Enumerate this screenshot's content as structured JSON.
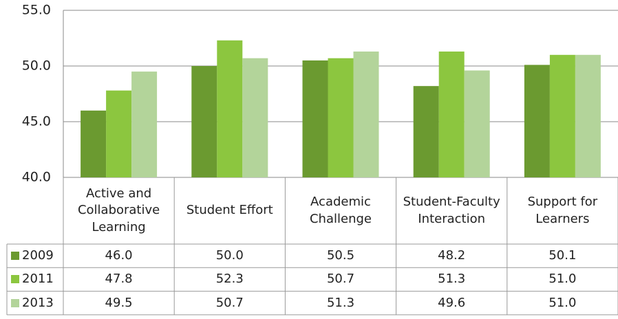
{
  "chart_data": {
    "type": "bar",
    "categories": [
      "Active and Collaborative Learning",
      "Student Effort",
      "Academic Challenge",
      "Student-Faculty Interaction",
      "Support for Learners"
    ],
    "series": [
      {
        "name": "2009",
        "color": "#6b9a30",
        "values": [
          46.0,
          50.0,
          50.5,
          48.2,
          50.1
        ],
        "value_labels": [
          "46.0",
          "50.0",
          "50.5",
          "48.2",
          "50.1"
        ]
      },
      {
        "name": "2011",
        "color": "#8cc63f",
        "values": [
          47.8,
          52.3,
          50.7,
          51.3,
          51.0
        ],
        "value_labels": [
          "47.8",
          "52.3",
          "50.7",
          "51.3",
          "51.0"
        ]
      },
      {
        "name": "2013",
        "color": "#b3d49a",
        "values": [
          49.5,
          50.7,
          51.3,
          49.6,
          51.0
        ],
        "value_labels": [
          "49.5",
          "50.7",
          "51.3",
          "49.6",
          "51.0"
        ]
      }
    ],
    "ylim": [
      40,
      55
    ],
    "yticks": [
      {
        "value": 40,
        "label": "40.0"
      },
      {
        "value": 45,
        "label": "45.0"
      },
      {
        "value": 50,
        "label": "50.0"
      },
      {
        "value": 55,
        "label": "55.0"
      }
    ],
    "grid": true
  }
}
